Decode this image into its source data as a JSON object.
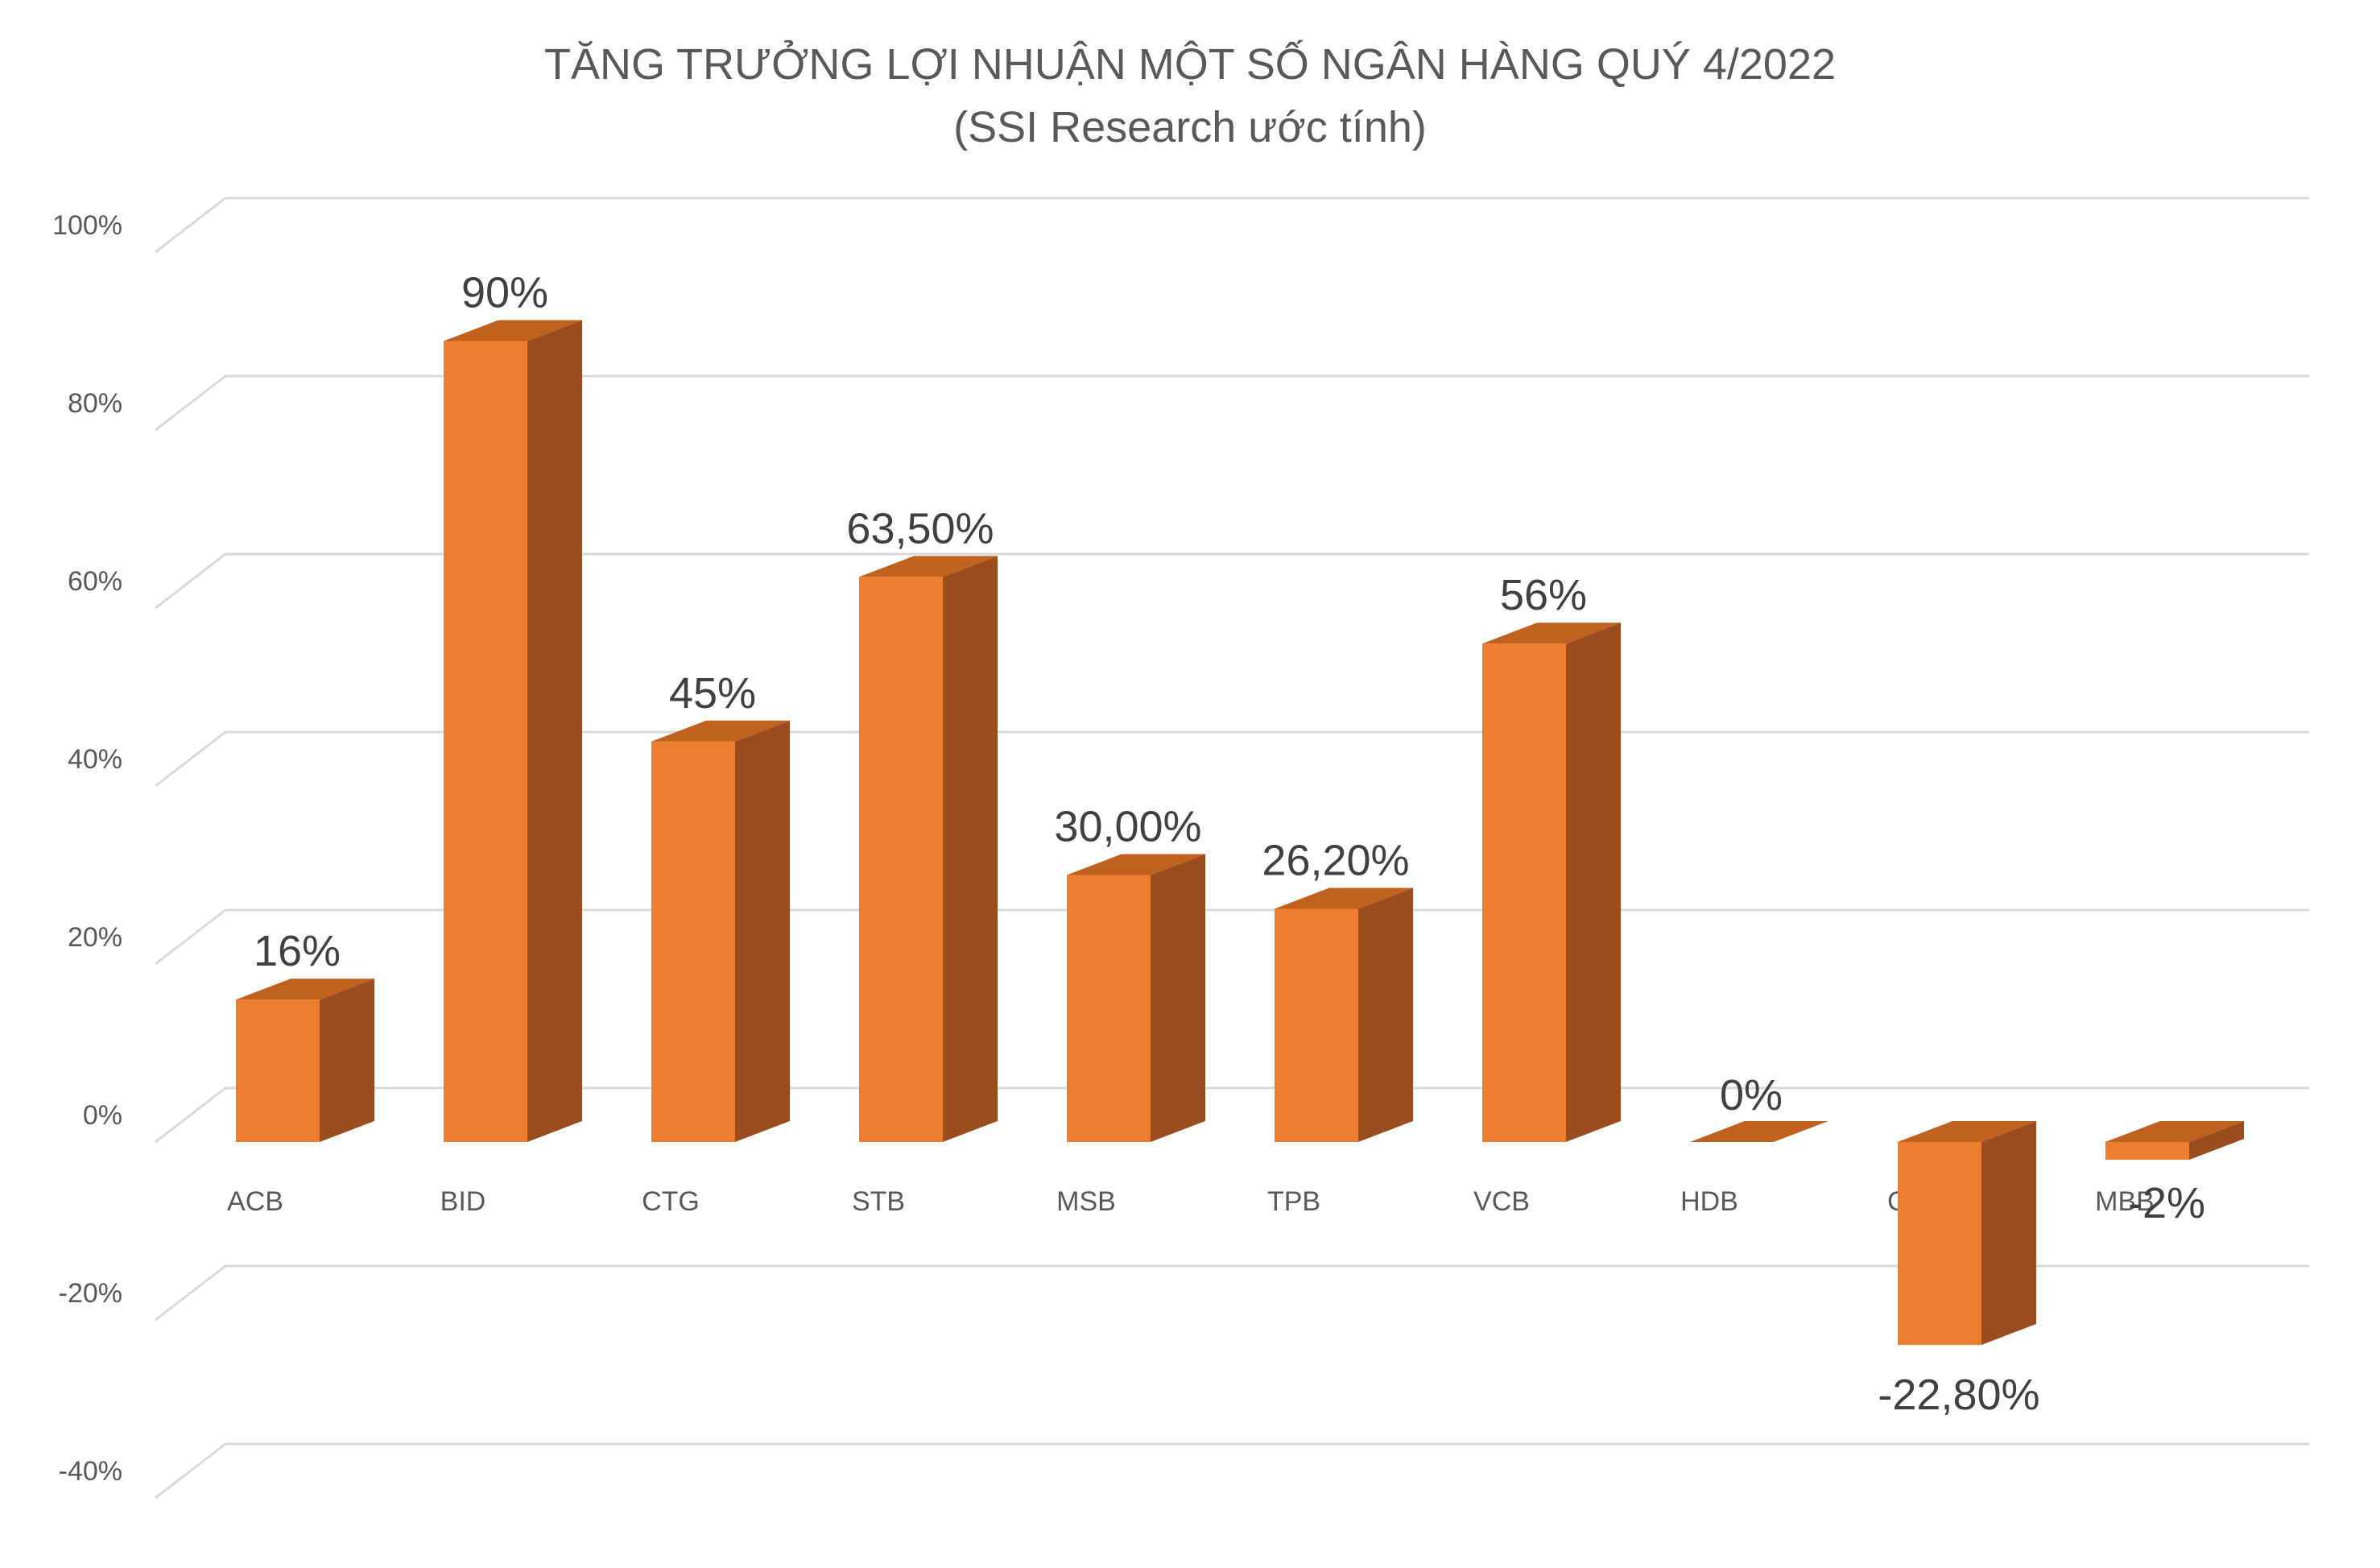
{
  "chart_data": {
    "type": "bar",
    "title": "TĂNG TRƯỞNG LỢI NHUẬN MỘT SỐ NGÂN HÀNG QUÝ 4/2022",
    "subtitle": "(SSI Research ước tính)",
    "xlabel": "",
    "ylabel": "",
    "ylim": [
      -40,
      100
    ],
    "y_ticks": [
      -40,
      -20,
      0,
      20,
      40,
      60,
      80,
      100
    ],
    "y_tick_labels": [
      "-40%",
      "-20%",
      "0%",
      "20%",
      "40%",
      "60%",
      "80%",
      "100%"
    ],
    "grid": true,
    "legend": "none",
    "style": "3d-column",
    "categories": [
      "ACB",
      "BID",
      "CTG",
      "STB",
      "MSB",
      "TPB",
      "VCB",
      "HDB",
      "OCB",
      "MBB"
    ],
    "values": [
      16,
      90,
      45,
      63.5,
      30,
      26.2,
      56,
      0,
      -22.8,
      -2
    ],
    "data_labels": [
      "16%",
      "90%",
      "45%",
      "63,50%",
      "30,00%",
      "26,20%",
      "56%",
      "0%",
      "-22,80%",
      "-2%"
    ],
    "colors": {
      "bar_front": "#ED7D31",
      "bar_side": "#9A4D1E",
      "bar_top": "#C0611F",
      "grid": "#D9D9D9",
      "text": "#595959",
      "label": "#404040"
    }
  }
}
